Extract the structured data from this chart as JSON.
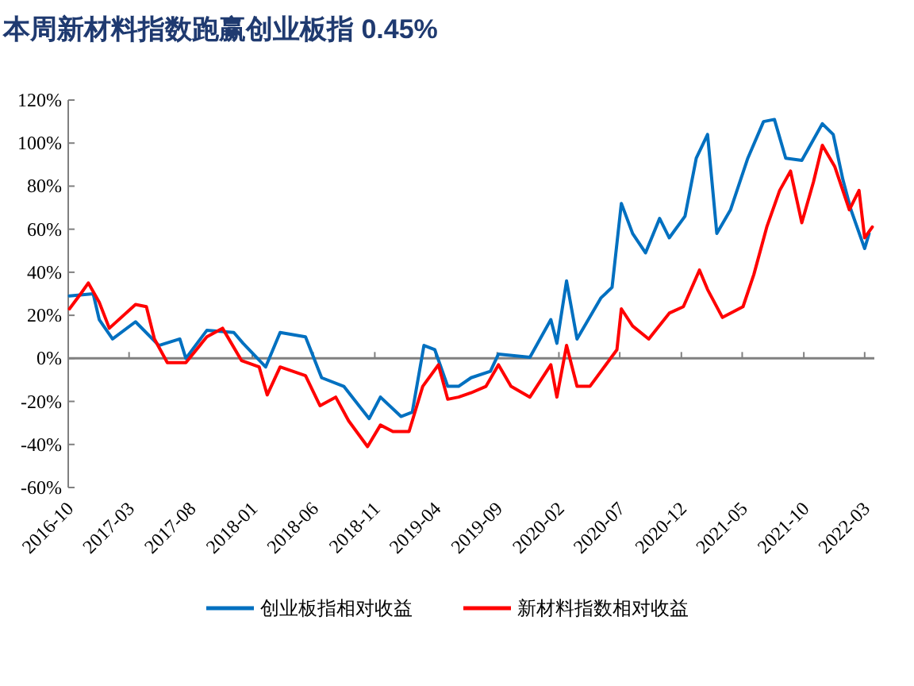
{
  "chart_data": {
    "type": "line",
    "title": "本周新材料指数跑赢创业板指 0.45%",
    "xlim": [
      "2016-10-01",
      "2022-03-25"
    ],
    "xticks": [
      "2016-10",
      "2017-03",
      "2017-08",
      "2018-01",
      "2018-06",
      "2018-11",
      "2019-04",
      "2019-09",
      "2020-02",
      "2020-07",
      "2020-12",
      "2021-05",
      "2021-10",
      "2022-03"
    ],
    "ylim": [
      -60,
      120
    ],
    "yticks": [
      {
        "value": -60,
        "label": "-60%"
      },
      {
        "value": -40,
        "label": "-40%"
      },
      {
        "value": -20,
        "label": "-20%"
      },
      {
        "value": 0,
        "label": "0%"
      },
      {
        "value": 20,
        "label": "20%"
      },
      {
        "value": 40,
        "label": "40%"
      },
      {
        "value": 60,
        "label": "60%"
      },
      {
        "value": 80,
        "label": "80%"
      },
      {
        "value": 100,
        "label": "100%"
      },
      {
        "value": 120,
        "label": "120%"
      }
    ],
    "grid": false,
    "legend": "bottom",
    "marker": "none",
    "line_style": "solid",
    "ref_lines": [
      {
        "axis": "y",
        "value": 0,
        "color": "#808080"
      }
    ],
    "series": [
      {
        "name": "创业板指相对收益",
        "color": "#0070c0",
        "x": [
          "2016-10-04",
          "2016-12-02",
          "2016-12-17",
          "2017-01-19",
          "2017-03-17",
          "2017-05-14",
          "2017-07-05",
          "2017-07-20",
          "2017-09-10",
          "2017-11-16",
          "2017-12-09",
          "2018-02-03",
          "2018-03-11",
          "2018-05-13",
          "2018-06-22",
          "2018-08-16",
          "2018-10-18",
          "2018-11-15",
          "2019-01-05",
          "2019-02-02",
          "2019-03-03",
          "2019-03-30",
          "2019-05-01",
          "2019-05-28",
          "2019-06-28",
          "2019-08-15",
          "2019-09-04",
          "2019-11-21",
          "2020-01-12",
          "2020-01-27",
          "2020-02-20",
          "2020-03-17",
          "2020-05-15",
          "2020-06-12",
          "2020-07-05",
          "2020-08-02",
          "2020-09-03",
          "2020-10-08",
          "2020-11-01",
          "2020-12-10",
          "2021-01-07",
          "2021-02-04",
          "2021-02-27",
          "2021-04-02",
          "2021-05-15",
          "2021-06-23",
          "2021-07-20",
          "2021-08-17",
          "2021-09-26",
          "2021-11-16",
          "2021-12-13",
          "2022-01-06",
          "2022-01-26",
          "2022-03-01",
          "2022-03-12"
        ],
        "values": [
          29,
          30,
          18,
          9,
          17,
          6,
          9,
          0,
          13,
          12,
          7,
          -4,
          12,
          10,
          -9,
          -13,
          -28,
          -18,
          -27,
          -25,
          6,
          4,
          -13,
          -13,
          -9,
          -6,
          2,
          0.5,
          18,
          7,
          36,
          9,
          28,
          33,
          72,
          58,
          49,
          65,
          56,
          66,
          93,
          104,
          58,
          69,
          93,
          110,
          111,
          93,
          92,
          109,
          104,
          83,
          69,
          51,
          58
        ]
      },
      {
        "name": "新材料指数相对收益",
        "color": "#ff0000",
        "x": [
          "2016-10-04",
          "2016-11-01",
          "2016-11-20",
          "2016-12-17",
          "2017-01-11",
          "2017-03-17",
          "2017-04-13",
          "2017-05-03",
          "2017-06-04",
          "2017-07-20",
          "2017-09-10",
          "2017-10-19",
          "2017-12-05",
          "2018-01-18",
          "2018-02-07",
          "2018-03-11",
          "2018-05-13",
          "2018-06-18",
          "2018-07-27",
          "2018-08-28",
          "2018-10-14",
          "2018-11-15",
          "2018-12-16",
          "2019-01-25",
          "2019-02-28",
          "2019-04-08",
          "2019-05-01",
          "2019-05-28",
          "2019-06-28",
          "2019-08-04",
          "2019-09-04",
          "2019-10-05",
          "2019-11-21",
          "2020-01-12",
          "2020-01-27",
          "2020-02-20",
          "2020-03-17",
          "2020-04-18",
          "2020-06-24",
          "2020-07-05",
          "2020-08-02",
          "2020-09-11",
          "2020-11-01",
          "2020-12-06",
          "2021-01-15",
          "2021-02-04",
          "2021-03-13",
          "2021-05-03",
          "2021-05-30",
          "2021-07-01",
          "2021-08-02",
          "2021-08-29",
          "2021-09-26",
          "2021-10-25",
          "2021-11-16",
          "2021-12-17",
          "2022-01-22",
          "2022-02-15",
          "2022-03-01",
          "2022-03-20"
        ],
        "values": [
          23,
          30,
          35,
          26,
          14,
          25,
          24,
          9,
          -2,
          -2,
          10,
          14,
          -1,
          -4,
          -17,
          -4,
          -8,
          -22,
          -18,
          -29,
          -41,
          -31,
          -34,
          -34,
          -13,
          -3,
          -19,
          -18,
          -16,
          -13,
          -3,
          -13,
          -18,
          -3,
          -18,
          6,
          -13,
          -13,
          4,
          23,
          15,
          9,
          21,
          24,
          41,
          32,
          19,
          24,
          39,
          61,
          78,
          87,
          63,
          82,
          99,
          89,
          69,
          78,
          56,
          61
        ]
      }
    ]
  }
}
